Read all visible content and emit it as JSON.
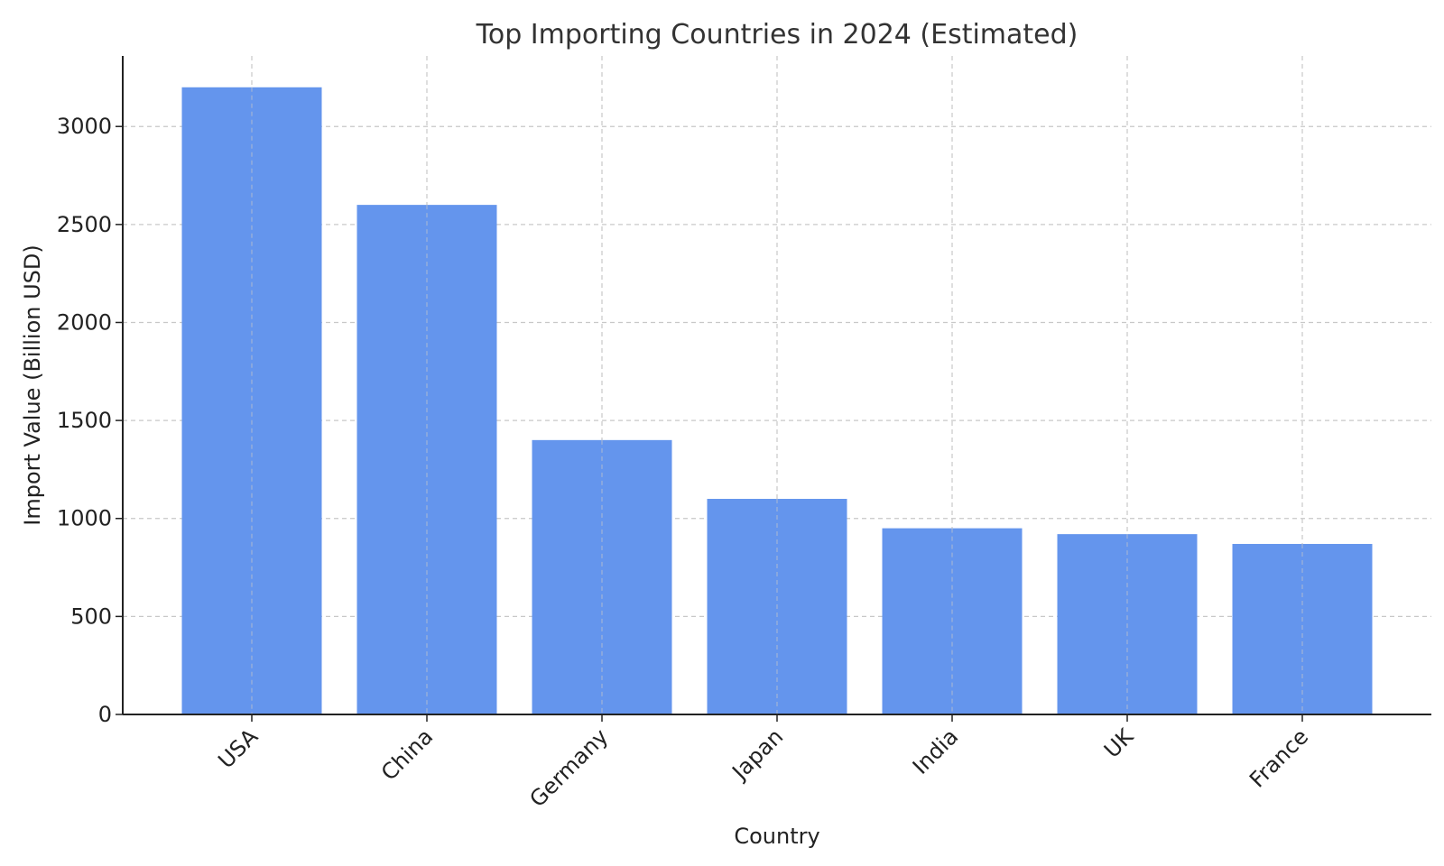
{
  "chart_data": {
    "type": "bar",
    "title": "Top Importing Countries in 2024 (Estimated)",
    "xlabel": "Country",
    "ylabel": "Import Value (Billion USD)",
    "categories": [
      "USA",
      "China",
      "Germany",
      "Japan",
      "India",
      "UK",
      "France"
    ],
    "values": [
      3200,
      2600,
      1400,
      1100,
      950,
      920,
      870
    ],
    "ylim": [
      0,
      3360
    ],
    "yticks": [
      0,
      500,
      1000,
      1500,
      2000,
      2500,
      3000
    ],
    "grid": true,
    "bar_color": "#6495ED"
  }
}
